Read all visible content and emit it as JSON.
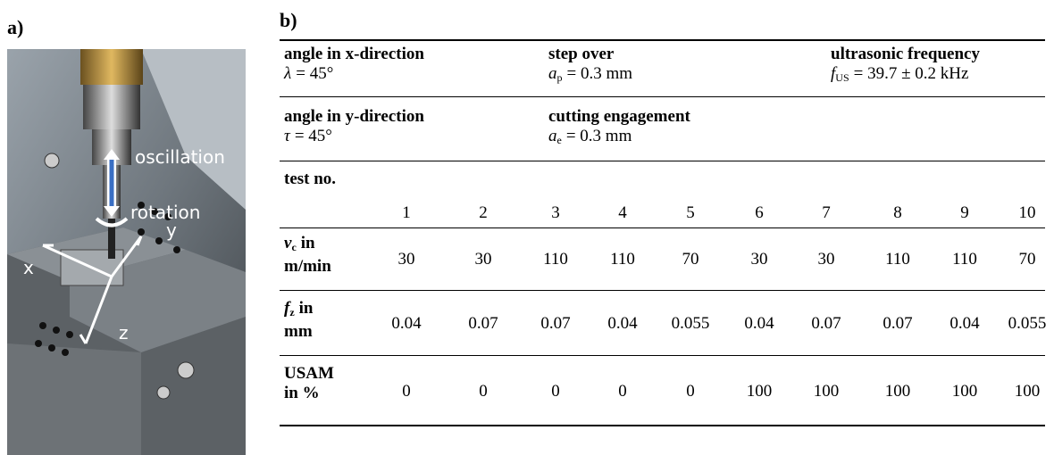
{
  "panel_a": {
    "label": "a)",
    "photo_labels": {
      "oscillation": "oscillation",
      "rotation": "rotation",
      "x": "x",
      "y": "y",
      "z": "z"
    }
  },
  "panel_b": {
    "label": "b)",
    "params": [
      {
        "name": "angle in x-direction",
        "symbol": "λ",
        "value": "= 45°"
      },
      {
        "name": "step over",
        "symbol": "a",
        "subscript": "p",
        "value": "= 0.3 mm"
      },
      {
        "name": "ultrasonic frequency",
        "symbol": "f",
        "subscript": "US",
        "value": "= 39.7 ± 0.2 kHz"
      },
      {
        "name": "angle in y-direction",
        "symbol": "τ",
        "value": "= 45°"
      },
      {
        "name": "cutting engagement",
        "symbol": "a",
        "subscript": "e",
        "value": "= 0.3 mm"
      }
    ],
    "table": {
      "rows": [
        {
          "label": {
            "text": "test no."
          },
          "values": [
            1,
            2,
            3,
            4,
            5,
            6,
            7,
            8,
            9,
            10
          ]
        },
        {
          "label": {
            "symbol": "v",
            "subscript": "c",
            "text": "in",
            "line2": "m/min"
          },
          "values": [
            30,
            30,
            110,
            110,
            70,
            30,
            30,
            110,
            110,
            70
          ]
        },
        {
          "label": {
            "symbol": "f",
            "subscript": "z",
            "text": "in",
            "line2": "mm"
          },
          "values": [
            0.04,
            0.07,
            0.07,
            0.04,
            0.055,
            0.04,
            0.07,
            0.07,
            0.04,
            0.055
          ]
        },
        {
          "label": {
            "text": "USAM",
            "line2": "in %"
          },
          "values": [
            0,
            0,
            0,
            0,
            0,
            100,
            100,
            100,
            100,
            100
          ]
        }
      ]
    }
  }
}
